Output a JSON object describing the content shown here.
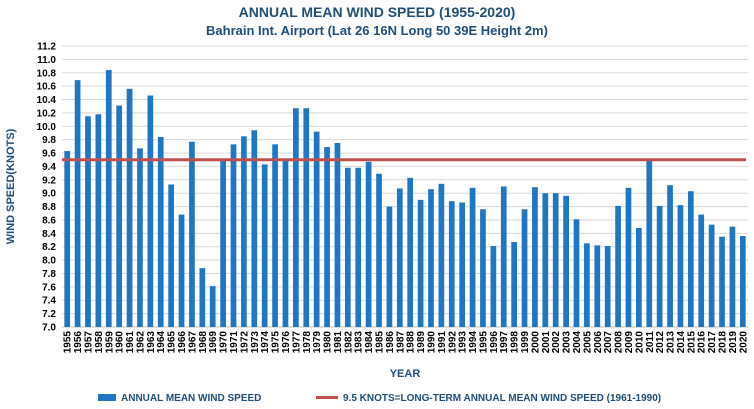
{
  "chart_data": {
    "type": "bar",
    "title": "ANNUAL MEAN WIND SPEED (1955-2020)",
    "subtitle": "Bahrain Int. Airport (Lat 26 16N Long 50 39E  Height 2m)",
    "xlabel": "YEAR",
    "ylabel": "WIND SPEED(KNOTS)",
    "ylim": [
      7.0,
      11.2
    ],
    "y_ticks": [
      "7.0",
      "7.2",
      "7.4",
      "7.6",
      "7.8",
      "8.0",
      "8.2",
      "8.4",
      "8.6",
      "8.8",
      "9.0",
      "9.2",
      "9.4",
      "9.6",
      "9.8",
      "10.0",
      "10.2",
      "10.4",
      "10.6",
      "10.8",
      "11.0",
      "11.2"
    ],
    "categories": [
      "1955",
      "1956",
      "1957",
      "1958",
      "1959",
      "1960",
      "1961",
      "1962",
      "1963",
      "1964",
      "1965",
      "1966",
      "1967",
      "1968",
      "1969",
      "1970",
      "1971",
      "1972",
      "1973",
      "1974",
      "1975",
      "1976",
      "1977",
      "1978",
      "1979",
      "1980",
      "1981",
      "1982",
      "1983",
      "1984",
      "1985",
      "1986",
      "1987",
      "1988",
      "1989",
      "1990",
      "1991",
      "1992",
      "1993",
      "1994",
      "1995",
      "1996",
      "1997",
      "1998",
      "1999",
      "2000",
      "2001",
      "2002",
      "2003",
      "2004",
      "2005",
      "2006",
      "2007",
      "2008",
      "2009",
      "2010",
      "2011",
      "2012",
      "2013",
      "2014",
      "2015",
      "2016",
      "2017",
      "2018",
      "2019",
      "2020"
    ],
    "series": [
      {
        "name": "ANNUAL MEAN WIND SPEED",
        "color": "#1f77c4",
        "values": [
          9.63,
          10.69,
          10.15,
          10.18,
          10.84,
          10.31,
          10.56,
          9.67,
          10.46,
          9.84,
          9.13,
          8.68,
          9.77,
          7.88,
          7.61,
          9.49,
          9.73,
          9.85,
          9.94,
          9.43,
          9.73,
          9.49,
          10.27,
          10.27,
          9.92,
          9.69,
          9.75,
          9.38,
          9.38,
          9.47,
          9.29,
          8.8,
          9.07,
          9.23,
          8.9,
          9.06,
          9.14,
          8.88,
          8.86,
          9.08,
          8.76,
          8.21,
          9.1,
          8.27,
          8.76,
          9.09,
          9.0,
          9.0,
          8.96,
          8.61,
          8.25,
          8.22,
          8.21,
          8.81,
          9.08,
          8.48,
          9.49,
          8.81,
          9.12,
          8.82,
          9.03,
          8.68,
          8.53,
          8.35,
          8.5,
          8.36
        ]
      }
    ],
    "reference_line": {
      "value": 9.5,
      "color": "#c0504d",
      "label": "9.5 KNOTS=LONG-TERM ANNUAL MEAN WIND SPEED (1961-1990)"
    },
    "grid": true,
    "legend_position": "bottom"
  }
}
